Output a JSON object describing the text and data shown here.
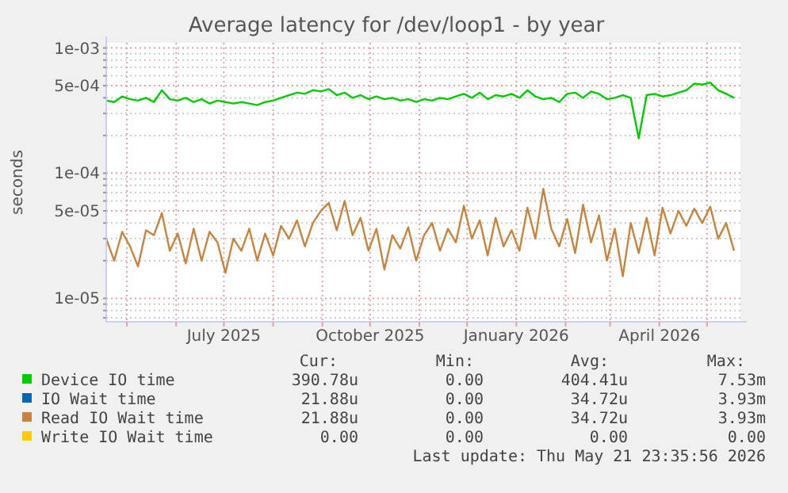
{
  "chart_data": {
    "type": "line",
    "title": "Average latency for /dev/loop1 - by year",
    "ylabel": "seconds",
    "log": "y",
    "grid": true,
    "legend": "bottom",
    "xlim": [
      "2025-04-18",
      "2026-05-22"
    ],
    "xticks": [
      {
        "value": "2025-05-01",
        "label": null
      },
      {
        "value": "2025-06-01",
        "label": null
      },
      {
        "value": "2025-07-01",
        "label": "July 2025"
      },
      {
        "value": "2025-08-01",
        "label": null
      },
      {
        "value": "2025-09-01",
        "label": null
      },
      {
        "value": "2025-10-01",
        "label": "October 2025"
      },
      {
        "value": "2025-11-01",
        "label": null
      },
      {
        "value": "2025-12-01",
        "label": null
      },
      {
        "value": "2026-01-01",
        "label": "January 2026"
      },
      {
        "value": "2026-02-01",
        "label": null
      },
      {
        "value": "2026-03-01",
        "label": null
      },
      {
        "value": "2026-04-01",
        "label": "April 2026"
      },
      {
        "value": "2026-05-01",
        "label": null
      }
    ],
    "ylim": [
      6.5e-06,
      0.0011
    ],
    "yticks": [
      {
        "value": 7e-06,
        "label": null
      },
      {
        "value": 8e-06,
        "label": null
      },
      {
        "value": 9e-06,
        "label": null
      },
      {
        "value": 1e-05,
        "label": "1e-05"
      },
      {
        "value": 2e-05,
        "label": null
      },
      {
        "value": 3e-05,
        "label": null
      },
      {
        "value": 4e-05,
        "label": null
      },
      {
        "value": 5e-05,
        "label": "5e-05"
      },
      {
        "value": 6e-05,
        "label": null
      },
      {
        "value": 7e-05,
        "label": null
      },
      {
        "value": 8e-05,
        "label": null
      },
      {
        "value": 9e-05,
        "label": null
      },
      {
        "value": 0.0001,
        "label": "1e-04"
      },
      {
        "value": 0.0002,
        "label": null
      },
      {
        "value": 0.0003,
        "label": null
      },
      {
        "value": 0.0004,
        "label": null
      },
      {
        "value": 0.0005,
        "label": "5e-04"
      },
      {
        "value": 0.0006,
        "label": null
      },
      {
        "value": 0.0007,
        "label": null
      },
      {
        "value": 0.0008,
        "label": null
      },
      {
        "value": 0.0009,
        "label": null
      },
      {
        "value": 0.001,
        "label": "1e-03"
      }
    ],
    "x": [
      "2025-04-18",
      "2025-04-23",
      "2025-04-28",
      "2025-05-03",
      "2025-05-08",
      "2025-05-13",
      "2025-05-18",
      "2025-05-23",
      "2025-05-28",
      "2025-06-02",
      "2025-06-07",
      "2025-06-12",
      "2025-06-17",
      "2025-06-22",
      "2025-06-27",
      "2025-07-02",
      "2025-07-07",
      "2025-07-12",
      "2025-07-17",
      "2025-07-22",
      "2025-07-27",
      "2025-08-01",
      "2025-08-06",
      "2025-08-11",
      "2025-08-16",
      "2025-08-21",
      "2025-08-26",
      "2025-08-31",
      "2025-09-05",
      "2025-09-10",
      "2025-09-15",
      "2025-09-20",
      "2025-09-25",
      "2025-09-30",
      "2025-10-05",
      "2025-10-10",
      "2025-10-15",
      "2025-10-20",
      "2025-10-25",
      "2025-10-30",
      "2025-11-04",
      "2025-11-09",
      "2025-11-14",
      "2025-11-19",
      "2025-11-24",
      "2025-11-29",
      "2025-12-04",
      "2025-12-09",
      "2025-12-14",
      "2025-12-19",
      "2025-12-24",
      "2025-12-29",
      "2026-01-03",
      "2026-01-08",
      "2026-01-13",
      "2026-01-18",
      "2026-01-23",
      "2026-01-28",
      "2026-02-02",
      "2026-02-07",
      "2026-02-12",
      "2026-02-17",
      "2026-02-22",
      "2026-02-27",
      "2026-03-04",
      "2026-03-09",
      "2026-03-14",
      "2026-03-19",
      "2026-03-24",
      "2026-03-29",
      "2026-04-03",
      "2026-04-08",
      "2026-04-13",
      "2026-04-18",
      "2026-04-23",
      "2026-04-28",
      "2026-05-03",
      "2026-05-08",
      "2026-05-13",
      "2026-05-18"
    ],
    "series": [
      {
        "name": "Device IO time",
        "color": "#00cc00",
        "values": [
          0.00038,
          0.00037,
          0.00041,
          0.00039,
          0.00038,
          0.0004,
          0.00037,
          0.00046,
          0.00039,
          0.00038,
          0.0004,
          0.00037,
          0.00039,
          0.00036,
          0.00038,
          0.00037,
          0.00036,
          0.00037,
          0.00036,
          0.00035,
          0.00037,
          0.00038,
          0.0004,
          0.00042,
          0.00044,
          0.00043,
          0.00046,
          0.00045,
          0.00047,
          0.00042,
          0.00044,
          0.0004,
          0.00042,
          0.00039,
          0.00041,
          0.00039,
          0.0004,
          0.00038,
          0.00039,
          0.00037,
          0.00039,
          0.00038,
          0.0004,
          0.00039,
          0.00041,
          0.00043,
          0.0004,
          0.00044,
          0.00039,
          0.00042,
          0.00041,
          0.00043,
          0.0004,
          0.00046,
          0.00041,
          0.00039,
          0.0004,
          0.00037,
          0.00043,
          0.00044,
          0.0004,
          0.00045,
          0.00043,
          0.00039,
          0.0004,
          0.00042,
          0.0004,
          0.00019,
          0.00042,
          0.00043,
          0.00041,
          0.00042,
          0.00044,
          0.00046,
          0.00052,
          0.00051,
          0.00053,
          0.00046,
          0.00043,
          0.0004
        ]
      },
      {
        "name": "IO Wait time",
        "color": "#0066b3",
        "values": [
          null,
          null,
          null,
          null,
          null,
          null,
          null,
          null,
          null,
          null,
          null,
          null,
          null,
          null,
          null,
          null,
          null,
          null,
          null,
          null,
          null,
          null,
          null,
          null,
          null,
          null,
          null,
          null,
          null,
          null,
          null,
          null,
          null,
          null,
          null,
          null,
          null,
          null,
          null,
          null,
          null,
          null,
          null,
          null,
          null,
          null,
          null,
          null,
          null,
          null,
          null,
          null,
          null,
          null,
          null,
          null,
          null,
          null,
          null,
          null,
          null,
          null,
          null,
          null,
          null,
          null,
          null,
          null,
          null,
          null,
          null,
          null,
          null,
          null,
          null,
          null,
          null,
          null,
          null,
          null
        ]
      },
      {
        "name": "Read IO Wait time",
        "color": "#c8843c",
        "values": [
          3e-05,
          2e-05,
          3.4e-05,
          2.6e-05,
          1.8e-05,
          3.5e-05,
          3.2e-05,
          4.8e-05,
          2.4e-05,
          3.3e-05,
          1.9e-05,
          3.6e-05,
          2e-05,
          3.4e-05,
          2.8e-05,
          1.6e-05,
          3e-05,
          2.4e-05,
          3.6e-05,
          2e-05,
          3.3e-05,
          2.2e-05,
          3.8e-05,
          3e-05,
          4.2e-05,
          2.6e-05,
          4e-05,
          5e-05,
          5.8e-05,
          3.5e-05,
          6e-05,
          3.2e-05,
          4.4e-05,
          2.4e-05,
          3.6e-05,
          1.7e-05,
          3.2e-05,
          2.5e-05,
          3.7e-05,
          2e-05,
          3.2e-05,
          4e-05,
          2.4e-05,
          3.6e-05,
          2.8e-05,
          5.5e-05,
          3e-05,
          4.2e-05,
          2.2e-05,
          4.4e-05,
          2.6e-05,
          3.5e-05,
          2.4e-05,
          5.3e-05,
          3e-05,
          7.5e-05,
          3.6e-05,
          2.6e-05,
          4.3e-05,
          2.3e-05,
          5.6e-05,
          2.8e-05,
          4.6e-05,
          2e-05,
          3.6e-05,
          1.5e-05,
          4e-05,
          2.3e-05,
          4.4e-05,
          2.2e-05,
          5.3e-05,
          3.3e-05,
          5e-05,
          3.8e-05,
          5.2e-05,
          4e-05,
          5.4e-05,
          3e-05,
          4e-05,
          2.4e-05
        ]
      },
      {
        "name": "Write IO Wait time",
        "color": "#ffcc00",
        "values": [
          null,
          null,
          null,
          null,
          null,
          null,
          null,
          null,
          null,
          null,
          null,
          null,
          null,
          null,
          null,
          null,
          null,
          null,
          null,
          null,
          null,
          null,
          null,
          null,
          null,
          null,
          null,
          null,
          null,
          null,
          null,
          null,
          null,
          null,
          null,
          null,
          null,
          null,
          null,
          null,
          null,
          null,
          null,
          null,
          null,
          null,
          null,
          null,
          null,
          null,
          null,
          null,
          null,
          null,
          null,
          null,
          null,
          null,
          null,
          null,
          null,
          null,
          null,
          null,
          null,
          null,
          null,
          null,
          null,
          null,
          null,
          null,
          null,
          null,
          null,
          null,
          null,
          null,
          null,
          null
        ]
      }
    ],
    "annotations": [
      "Cur:",
      "Min:",
      "Avg:",
      "Max:",
      "390.78u",
      "0.00",
      "404.41u",
      "7.53m",
      "21.88u",
      "0.00",
      "34.72u",
      "3.93m",
      "21.88u",
      "0.00",
      "34.72u",
      "3.93m",
      "0.00",
      "0.00",
      "0.00",
      "0.00",
      "Last update: Thu May 21 23:35:56 2026"
    ]
  }
}
